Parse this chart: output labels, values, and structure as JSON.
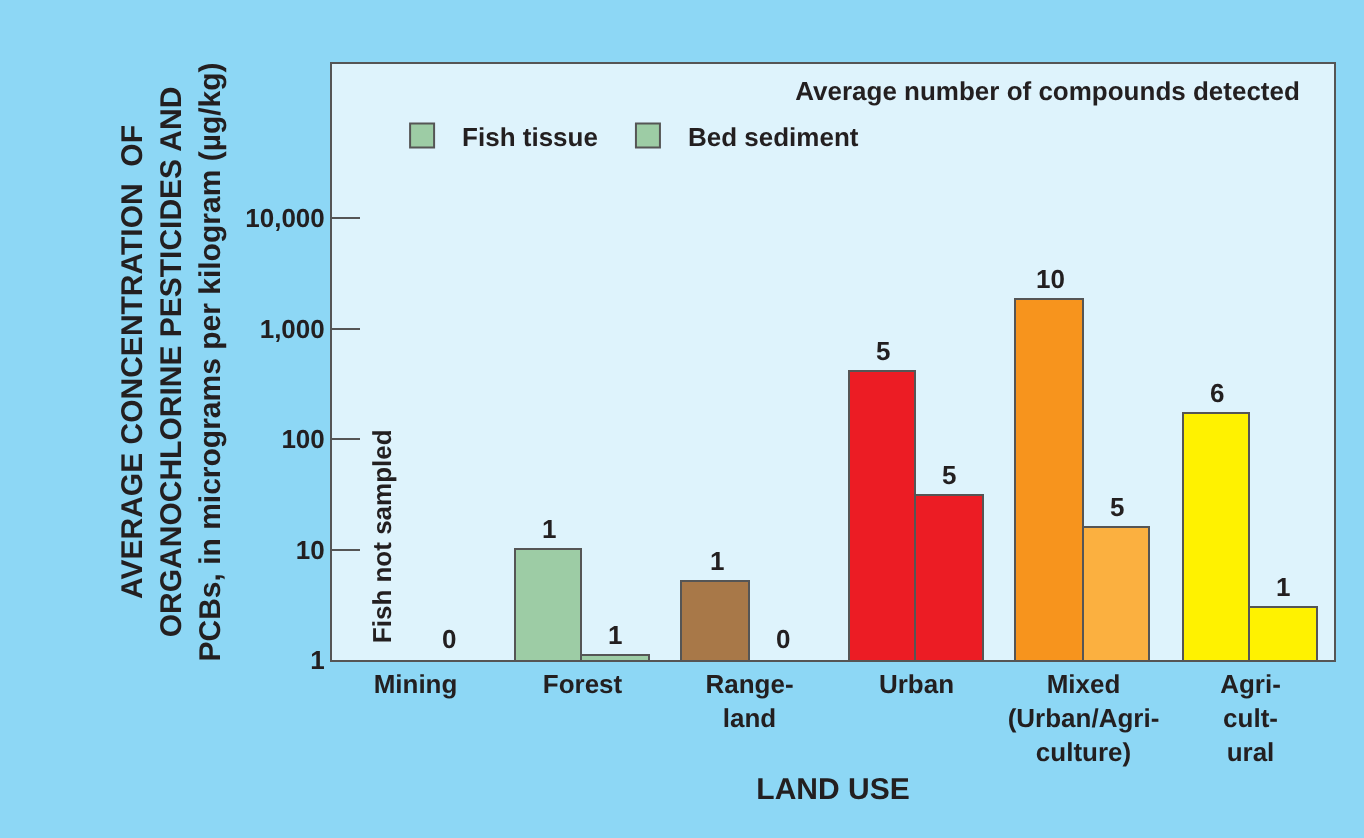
{
  "chart_data": {
    "type": "bar",
    "xlabel": "LAND USE",
    "ylabel": "AVERAGE CONCENTRATION  OF\nORGANOCHLORINE PESTICIDES AND\nPCBs, in micrograms per kilogram (µg/kg)",
    "categories": [
      "Mining",
      "Forest",
      "Range-\nland",
      "Urban",
      "Mixed\n(Urban/Agri-\nculture)",
      "Agri-\ncult-\nural"
    ],
    "series": [
      {
        "name": "Fish tissue",
        "colors": [
          "#9dcca5",
          "#9dcca5",
          "#a87848",
          "#ec1c24",
          "#f7941d",
          "#fff200"
        ],
        "values": [
          null,
          10,
          5,
          400,
          1800,
          170
        ]
      },
      {
        "name": "Bed sediment",
        "colors": [
          "#9dcca5",
          "#9dcca5",
          "#a87848",
          "#ec1c24",
          "#fbb040",
          "#fff200"
        ],
        "values": [
          null,
          1.1,
          null,
          30,
          16,
          3
        ]
      }
    ],
    "log": true,
    "ylim": [
      1,
      250000
    ],
    "yticks": [
      1,
      10,
      100,
      {
        "value": 1000,
        "label": "1,000"
      },
      {
        "value": 10000,
        "label": "10,000"
      }
    ],
    "legend": "top",
    "grid": false,
    "annotations": [
      "Average number of compounds detected",
      "Fish not sampled",
      "0",
      "0",
      {
        "text": "1",
        "x": "Forest",
        "y": 10
      },
      {
        "text": "1",
        "x": "Forest",
        "y": 1.1
      },
      {
        "text": "1",
        "x": "Range-\nland",
        "y": 5
      },
      {
        "text": "5",
        "x": "Urban",
        "y": 400
      },
      {
        "text": "5",
        "x": "Urban",
        "y": 30
      },
      {
        "text": "10",
        "x": "Mixed\n(Urban/Agri-\nculture)",
        "y": 1800
      },
      {
        "text": "5",
        "x": "Mixed\n(Urban/Agri-\nculture)",
        "y": 16
      },
      {
        "text": "6",
        "x": "Agri-\ncult-\nural",
        "y": 170
      },
      {
        "text": "1",
        "x": "Agri-\ncult-\nural",
        "y": 3
      }
    ]
  }
}
